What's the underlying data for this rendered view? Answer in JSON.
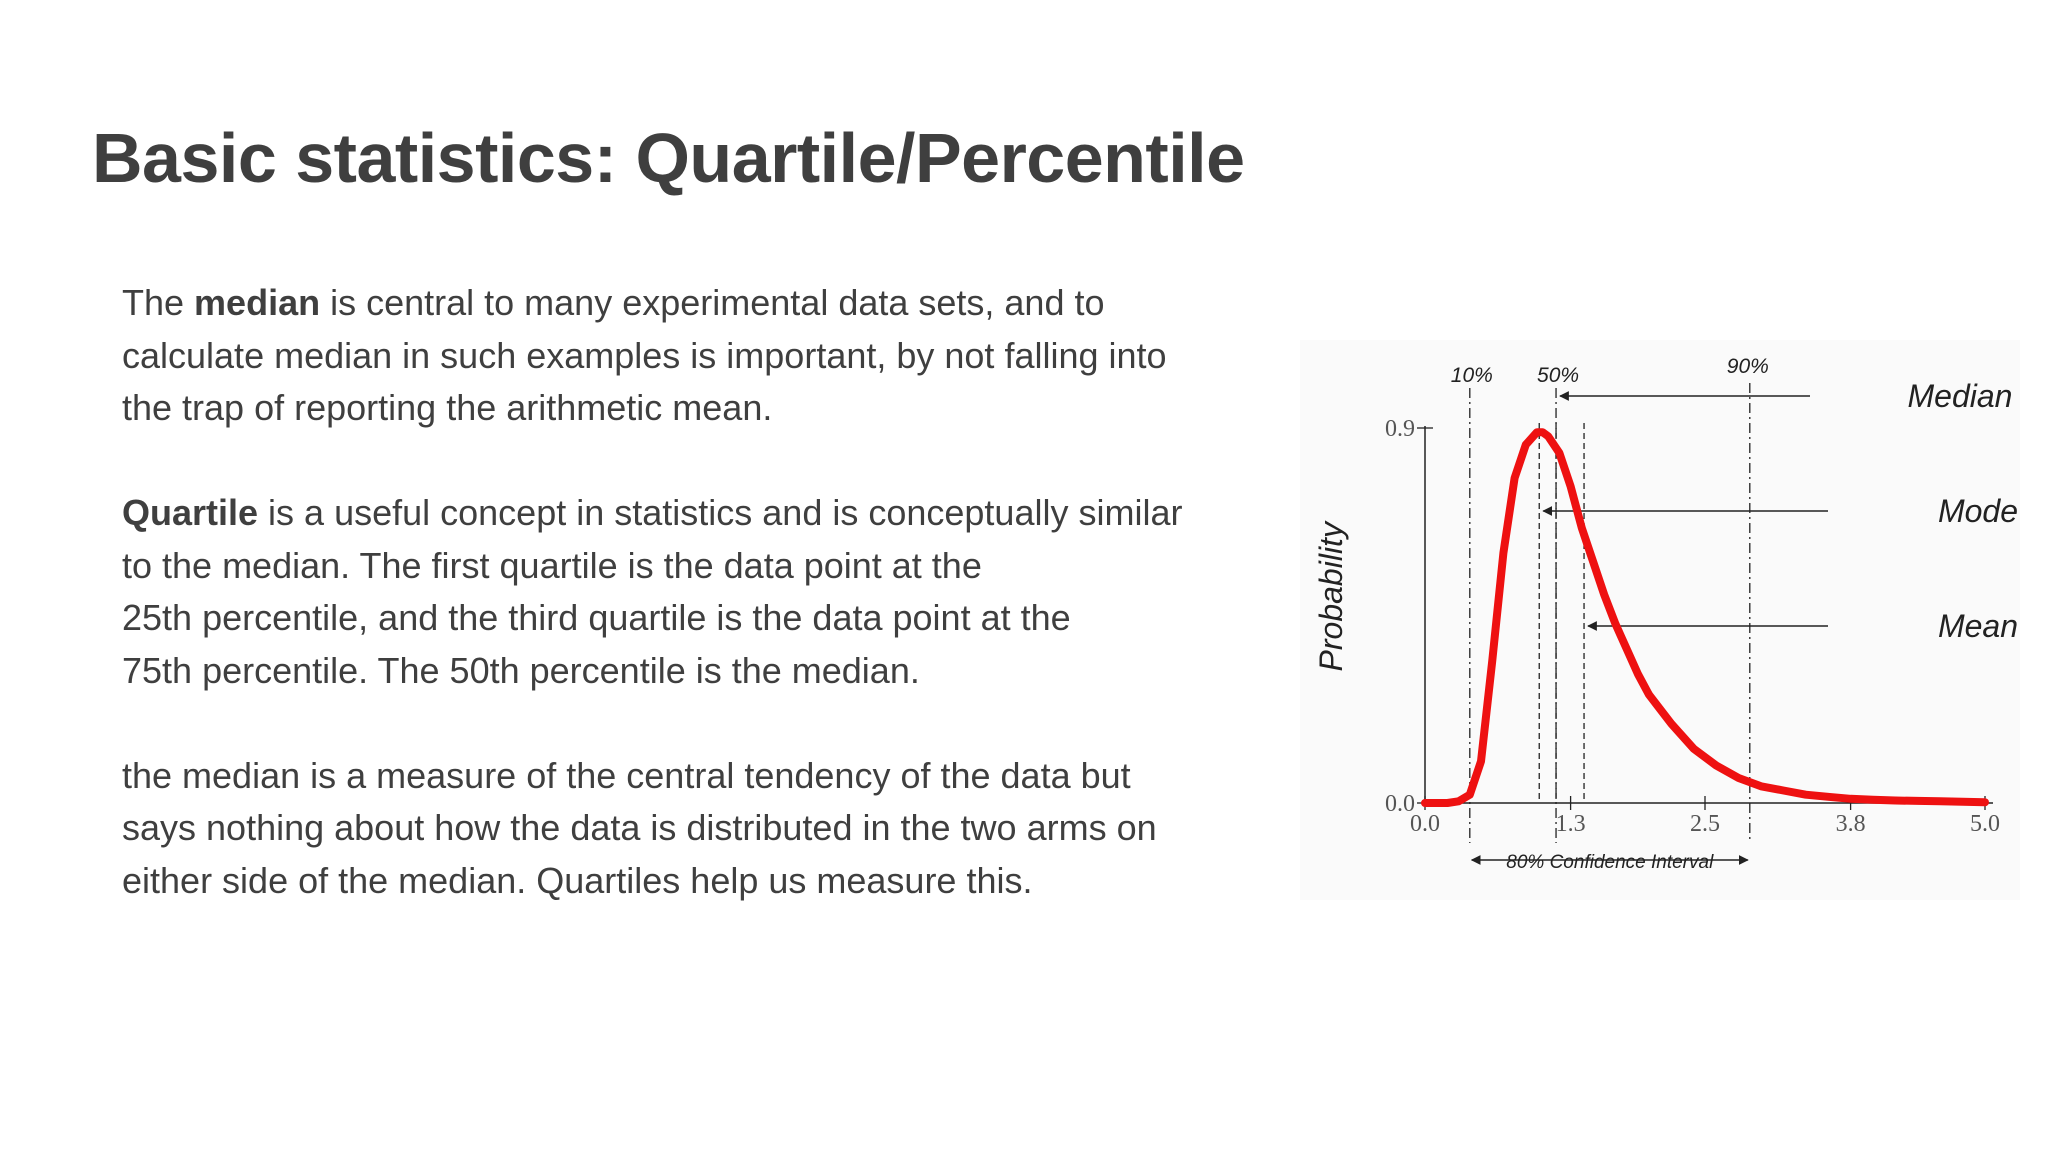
{
  "slide": {
    "title": "Basic statistics: Quartile/Percentile",
    "paragraphs": [
      {
        "lines": [
          {
            "pre": "The ",
            "bold": "median",
            "post": " is central to many experimental data sets, and to"
          },
          {
            "pre": "calculate median in such examples is important, by not falling into",
            "bold": "",
            "post": ""
          },
          {
            "pre": "the trap of reporting the arithmetic mean.",
            "bold": "",
            "post": ""
          }
        ]
      },
      {
        "lines": [
          {
            "pre": "",
            "bold": "Quartile",
            "post": " is a useful concept in statistics and is conceptually similar"
          },
          {
            "pre": "to the median. The first quartile is the data point at the",
            "bold": "",
            "post": ""
          },
          {
            "pre": "25th percentile, and the third quartile is the data point at the",
            "bold": "",
            "post": ""
          },
          {
            "pre": "75th percentile. The 50th percentile is the median.",
            "bold": "",
            "post": ""
          }
        ]
      },
      {
        "lines": [
          {
            "pre": "the median is a measure of the central tendency of the data but",
            "bold": "",
            "post": ""
          },
          {
            "pre": "says nothing about how the data is distributed in the two arms on",
            "bold": "",
            "post": ""
          },
          {
            "pre": "either side of the median. Quartiles help us measure this.",
            "bold": "",
            "post": ""
          }
        ]
      }
    ]
  },
  "chart_data": {
    "type": "line",
    "title": "",
    "xlabel": "",
    "ylabel": "Probability",
    "xlim": [
      0.0,
      5.0
    ],
    "ylim": [
      0.0,
      0.9
    ],
    "x_ticks": [
      "0.0",
      "1.3",
      "2.5",
      "3.8",
      "5.0"
    ],
    "y_ticks": [
      "0.0",
      "0.9"
    ],
    "grid": false,
    "curve_color": "#ee1111",
    "series": [
      {
        "name": "",
        "x": [
          0.0,
          0.2,
          0.3,
          0.4,
          0.5,
          0.6,
          0.7,
          0.8,
          0.9,
          1.0,
          1.05,
          1.1,
          1.2,
          1.3,
          1.4,
          1.5,
          1.6,
          1.7,
          1.8,
          1.9,
          2.0,
          2.2,
          2.4,
          2.6,
          2.8,
          3.0,
          3.2,
          3.4,
          3.6,
          3.8,
          4.0,
          4.2,
          4.4,
          4.6,
          4.8,
          5.0
        ],
        "y": [
          0.0,
          0.0,
          0.004,
          0.02,
          0.1,
          0.34,
          0.6,
          0.78,
          0.86,
          0.89,
          0.89,
          0.88,
          0.84,
          0.76,
          0.66,
          0.58,
          0.5,
          0.43,
          0.37,
          0.31,
          0.26,
          0.19,
          0.13,
          0.09,
          0.06,
          0.04,
          0.03,
          0.02,
          0.015,
          0.01,
          0.008,
          0.006,
          0.005,
          0.004,
          0.003,
          0.002
        ]
      }
    ],
    "markers": [
      {
        "label": "10%",
        "x": 0.4
      },
      {
        "label": "50%",
        "x": 1.17
      }
    ],
    "top_marker": {
      "label": "90%",
      "x": 2.9
    },
    "reference_lines": [
      {
        "label": "Median",
        "x": 1.17
      },
      {
        "label": "Mode",
        "x": 1.02
      },
      {
        "label": "Mean",
        "x": 1.42
      }
    ],
    "interval": {
      "label": "80% Confidence Interval",
      "from": 0.4,
      "to": 2.9
    }
  }
}
